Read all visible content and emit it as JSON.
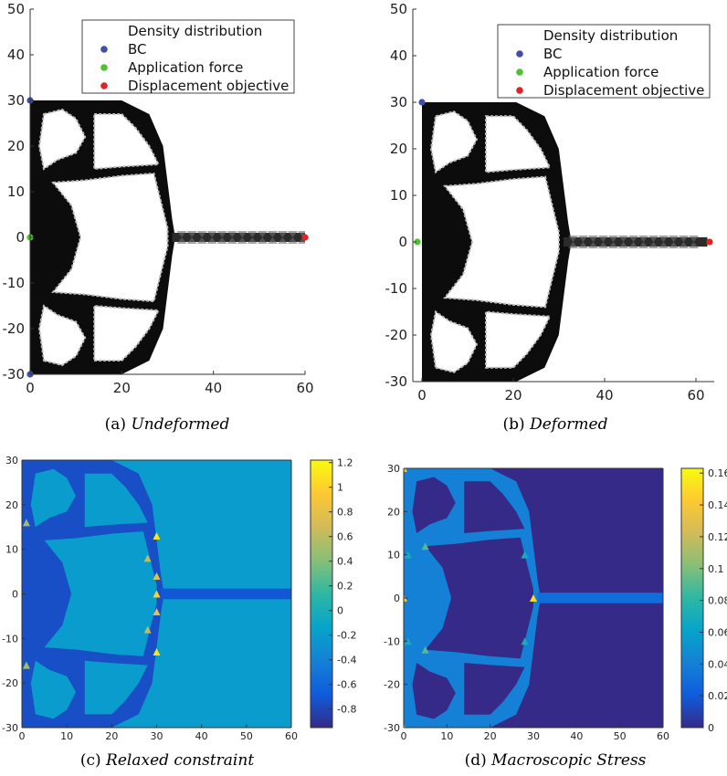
{
  "chart_data": [
    {
      "id": "a",
      "type": "heatmap",
      "subtitle": "(a) Undeformed",
      "caption_prefix": "(a) ",
      "caption_text": "Undeformed",
      "xlim": [
        0,
        60
      ],
      "ylim": [
        -30,
        50
      ],
      "xticks": [
        0,
        20,
        40,
        60
      ],
      "yticks": [
        -30,
        -20,
        -10,
        0,
        10,
        20,
        30,
        40,
        50
      ],
      "legend": {
        "placement": "top-right",
        "entries": [
          {
            "label": "Density distribution",
            "color": ""
          },
          {
            "label": "BC",
            "color": "#3f4fa8"
          },
          {
            "label": "Application force",
            "color": "#4cc22e"
          },
          {
            "label": "Displacement objective",
            "color": "#e02424"
          }
        ]
      },
      "markers": {
        "bc": [
          [
            0,
            30
          ],
          [
            0,
            -30
          ]
        ],
        "force": [
          [
            0,
            0
          ]
        ],
        "objective": [
          [
            60,
            0
          ]
        ]
      }
    },
    {
      "id": "b",
      "type": "heatmap",
      "subtitle": "(b) Deformed",
      "caption_prefix": "(b) ",
      "caption_text": "Deformed",
      "xlim": [
        -2,
        64
      ],
      "ylim": [
        -30,
        50
      ],
      "xticks": [
        0,
        20,
        40,
        60
      ],
      "yticks": [
        -30,
        -20,
        -10,
        0,
        10,
        20,
        30,
        40,
        50
      ],
      "legend": {
        "placement": "top-right",
        "entries": [
          {
            "label": "Density distribution",
            "color": ""
          },
          {
            "label": "BC",
            "color": "#3f4fa8"
          },
          {
            "label": "Application force",
            "color": "#4cc22e"
          },
          {
            "label": "Displacement objective",
            "color": "#e02424"
          }
        ]
      },
      "markers": {
        "bc": [
          [
            0,
            30
          ]
        ],
        "force": [
          [
            -1,
            0
          ]
        ],
        "objective": [
          [
            63,
            0
          ]
        ]
      }
    },
    {
      "id": "c",
      "type": "heatmap",
      "subtitle": "(c) Relaxed constraint",
      "caption_prefix": "(c) ",
      "caption_text": "Relaxed constraint",
      "xlim": [
        0,
        60
      ],
      "ylim": [
        -30,
        30
      ],
      "xticks": [
        0,
        10,
        20,
        30,
        40,
        50,
        60
      ],
      "yticks": [
        -30,
        -20,
        -10,
        0,
        10,
        20,
        30
      ],
      "colorbar": {
        "range": [
          -0.95,
          1.22
        ],
        "ticks": [
          -0.8,
          -0.6,
          -0.4,
          -0.2,
          0,
          0.2,
          0.4,
          0.6,
          0.8,
          1,
          1.2
        ],
        "tick_labels": [
          "-0.8",
          "-0.6",
          "-0.4",
          "-0.2",
          "0",
          "0.2",
          "0.4",
          "0.6",
          "0.8",
          "1",
          "1.2"
        ]
      },
      "background_value": -0.2,
      "material_value": -0.75
    },
    {
      "id": "d",
      "type": "heatmap",
      "subtitle": "(d) Macroscopic Stress",
      "caption_prefix": "(d) ",
      "caption_text": "Macroscopic Stress",
      "xlim": [
        0,
        60
      ],
      "ylim": [
        -30,
        30
      ],
      "xticks": [
        0,
        10,
        20,
        30,
        40,
        50,
        60
      ],
      "yticks": [
        -30,
        -20,
        -10,
        0,
        10,
        20,
        30
      ],
      "colorbar": {
        "range": [
          0,
          0.163
        ],
        "ticks": [
          0,
          0.02,
          0.04,
          0.06,
          0.08,
          0.1,
          0.12,
          0.14,
          0.16
        ],
        "tick_labels": [
          "0",
          "0.02",
          "0.04",
          "0.06",
          "0.08",
          "0.1",
          "0.12",
          "0.14",
          "0.16"
        ]
      },
      "background_value": 0.0,
      "material_value": 0.04
    }
  ],
  "colors": {
    "material": "#0c0c0c",
    "void": "#ffffff",
    "parula": [
      "#352a87",
      "#0f5cdd",
      "#1481d6",
      "#06a4ca",
      "#2eb7a4",
      "#87bf77",
      "#d1bb59",
      "#fec832",
      "#f9fb0e"
    ]
  }
}
